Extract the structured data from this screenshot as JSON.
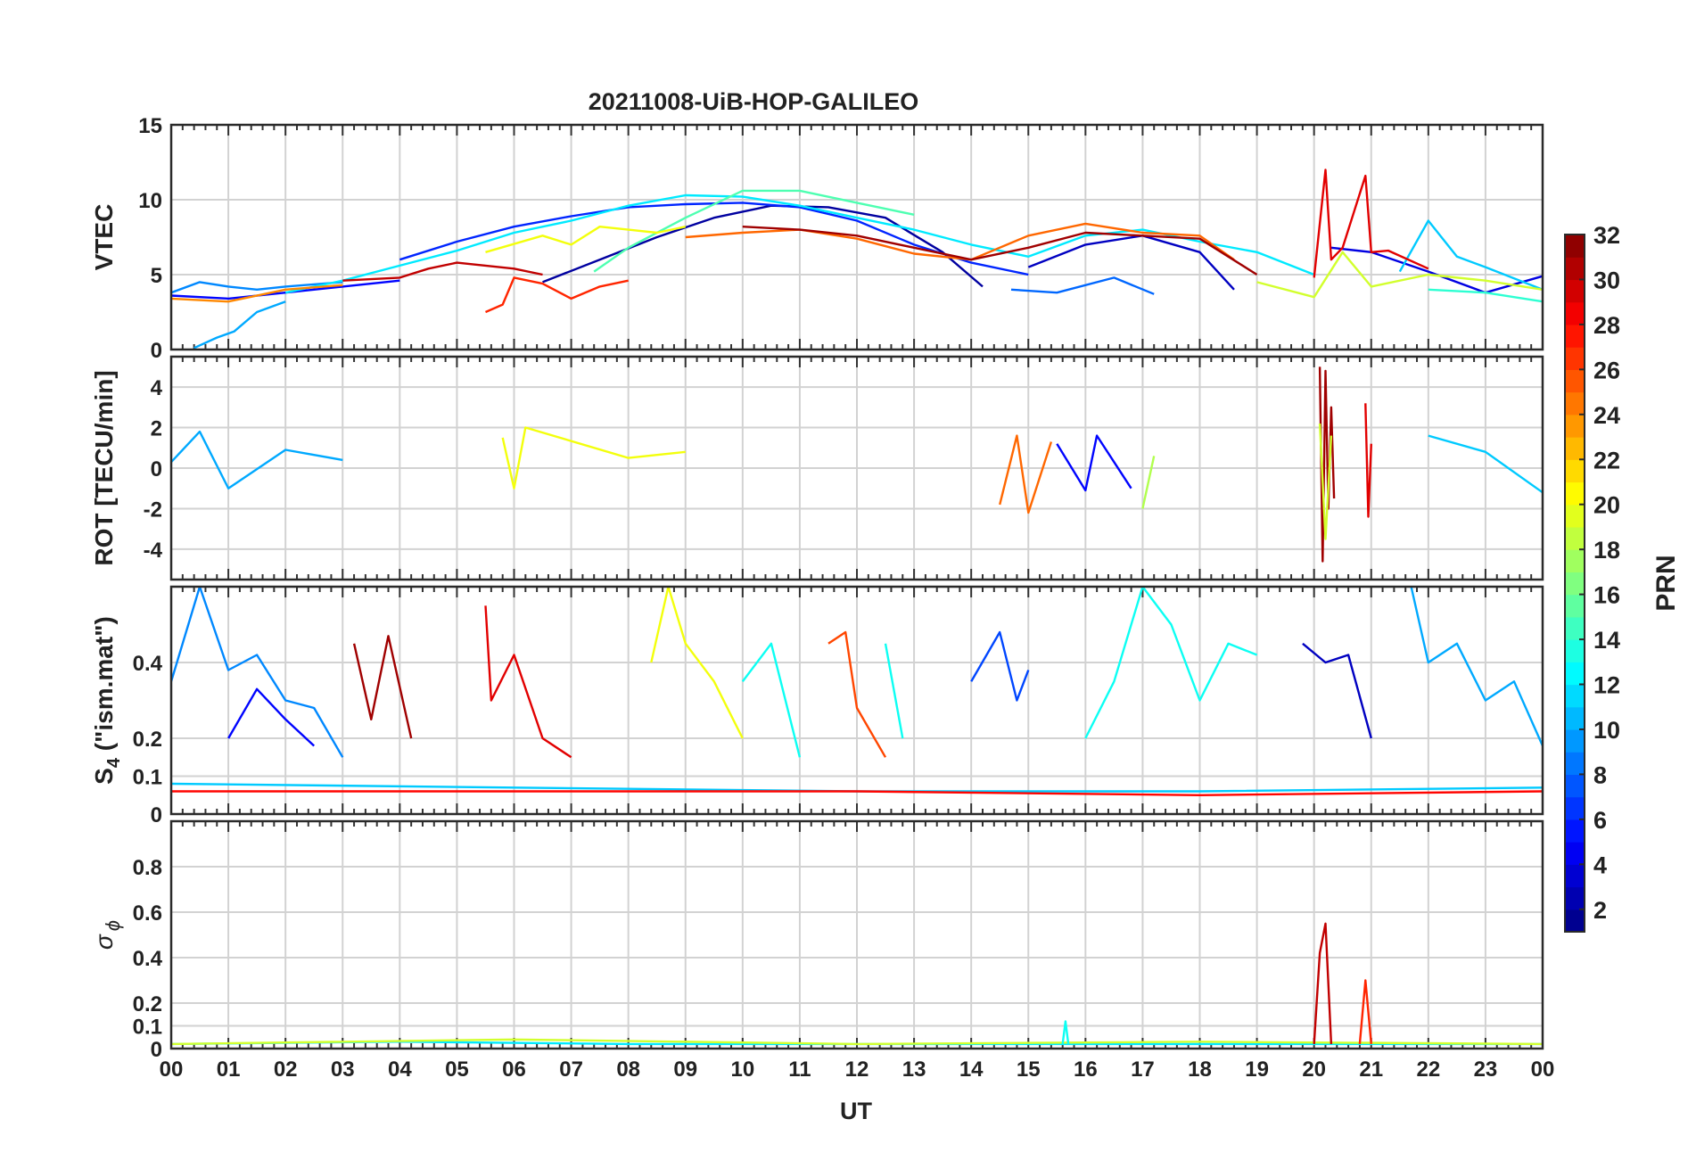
{
  "chart_data": {
    "type": "line",
    "title": "20211008-UiB-HOP-GALILEO",
    "xlabel": "UT",
    "x_ticks": [
      "00",
      "01",
      "02",
      "03",
      "04",
      "05",
      "06",
      "07",
      "08",
      "09",
      "10",
      "11",
      "12",
      "13",
      "14",
      "15",
      "16",
      "17",
      "18",
      "19",
      "20",
      "21",
      "22",
      "23",
      "00"
    ],
    "xlim": [
      0,
      24
    ],
    "colorbar": {
      "label": "PRN",
      "range": [
        1,
        32
      ],
      "ticks": [
        2,
        4,
        6,
        8,
        10,
        12,
        14,
        16,
        18,
        20,
        22,
        24,
        26,
        28,
        30,
        32
      ],
      "colormap": "jet"
    },
    "panels": [
      {
        "id": "vtec",
        "ylabel": "VTEC",
        "ylim": [
          0,
          15
        ],
        "yticks": [
          0,
          5,
          10,
          15
        ],
        "series": [
          {
            "prn": 2,
            "x": [
              6.5,
              7.5,
              8.5,
              9.5,
              10.5,
              11.5,
              12.5,
              13.5,
              14.2
            ],
            "y": [
              4.5,
              6.0,
              7.5,
              8.8,
              9.6,
              9.5,
              8.8,
              6.5,
              4.2
            ]
          },
          {
            "prn": 3,
            "x": [
              15.0,
              16.0,
              17.0,
              18.0,
              18.6
            ],
            "y": [
              5.5,
              7.0,
              7.6,
              6.5,
              4.0
            ]
          },
          {
            "prn": 4,
            "x": [
              20.3,
              21.0,
              22.0,
              23.0,
              24.0
            ],
            "y": [
              6.8,
              6.5,
              5.2,
              3.8,
              4.9
            ]
          },
          {
            "prn": 5,
            "x": [
              0.0,
              1.0,
              2.0,
              3.0,
              4.0
            ],
            "y": [
              3.6,
              3.4,
              3.8,
              4.2,
              4.6
            ]
          },
          {
            "prn": 6,
            "x": [
              4.0,
              5.0,
              6.0,
              7.0,
              8.0,
              9.0,
              10.0,
              11.0,
              12.0,
              13.0,
              14.0,
              15.0
            ],
            "y": [
              6.0,
              7.2,
              8.2,
              8.9,
              9.5,
              9.7,
              9.8,
              9.5,
              8.6,
              7.0,
              5.8,
              5.0
            ]
          },
          {
            "prn": 8,
            "x": [
              14.7,
              15.5,
              16.5,
              17.2
            ],
            "y": [
              4.0,
              3.8,
              4.8,
              3.7
            ]
          },
          {
            "prn": 9,
            "x": [
              0.0,
              0.5,
              1.0,
              1.5,
              2.0,
              3.0
            ],
            "y": [
              3.8,
              4.5,
              4.2,
              4.0,
              4.2,
              4.5
            ]
          },
          {
            "prn": 10,
            "x": [
              0.4,
              0.8,
              1.1,
              1.5,
              2.0
            ],
            "y": [
              0.1,
              0.8,
              1.2,
              2.5,
              3.2
            ]
          },
          {
            "prn": 11,
            "x": [
              21.5,
              22.0,
              22.5,
              23.0,
              24.0
            ],
            "y": [
              5.2,
              8.6,
              6.2,
              5.5,
              4.0
            ]
          },
          {
            "prn": 12,
            "x": [
              2.0,
              3.0,
              4.0,
              5.0,
              6.0,
              7.0,
              8.0,
              9.0,
              10.0,
              11.0,
              12.0,
              13.0,
              14.0,
              15.0,
              16.0,
              17.0,
              18.0,
              19.0,
              20.0
            ],
            "y": [
              3.8,
              4.6,
              5.6,
              6.6,
              7.8,
              8.6,
              9.6,
              10.3,
              10.2,
              9.6,
              8.8,
              8.0,
              7.0,
              6.2,
              7.6,
              8.0,
              7.2,
              6.5,
              5.0
            ]
          },
          {
            "prn": 14,
            "x": [
              22.0,
              23.0,
              24.0
            ],
            "y": [
              4.0,
              3.8,
              3.2
            ]
          },
          {
            "prn": 15,
            "x": [
              7.4,
              8.0,
              9.0,
              10.0,
              11.0,
              12.0,
              13.0
            ],
            "y": [
              5.2,
              6.8,
              8.8,
              10.6,
              10.6,
              9.8,
              9.0
            ]
          },
          {
            "prn": 19,
            "x": [
              19.0,
              20.0,
              20.5,
              21.0,
              22.0,
              23.0,
              24.0
            ],
            "y": [
              4.5,
              3.5,
              6.5,
              4.2,
              5.0,
              4.6,
              4.0
            ]
          },
          {
            "prn": 20,
            "x": [
              5.5,
              6.5,
              7.0,
              7.5,
              8.0,
              8.5,
              9.0
            ],
            "y": [
              6.5,
              7.6,
              7.0,
              8.2,
              8.0,
              7.8,
              8.2
            ]
          },
          {
            "prn": 24,
            "x": [
              0.0,
              1.0,
              2.0,
              3.0
            ],
            "y": [
              3.4,
              3.2,
              4.0,
              4.3
            ]
          },
          {
            "prn": 25,
            "x": [
              9.0,
              10.0,
              11.0,
              12.0,
              13.0,
              14.0,
              15.0,
              16.0,
              17.0,
              18.0,
              18.6
            ],
            "y": [
              7.5,
              7.8,
              8.0,
              7.4,
              6.4,
              6.0,
              7.6,
              8.4,
              7.8,
              7.6,
              6.0
            ]
          },
          {
            "prn": 27,
            "x": [
              5.5,
              5.8,
              6.0,
              6.5,
              7.0,
              7.5,
              8.0
            ],
            "y": [
              2.5,
              3.0,
              4.8,
              4.4,
              3.4,
              4.2,
              4.6
            ]
          },
          {
            "prn": 30,
            "x": [
              3.0,
              4.0,
              4.5,
              5.0,
              6.0,
              6.5
            ],
            "y": [
              4.6,
              4.8,
              5.4,
              5.8,
              5.4,
              5.0
            ]
          },
          {
            "prn": 31,
            "x": [
              10.0,
              11.0,
              12.0,
              13.0,
              14.0,
              15.0,
              16.0,
              17.0,
              18.0,
              19.0
            ],
            "y": [
              8.2,
              8.0,
              7.6,
              6.8,
              6.0,
              6.8,
              7.8,
              7.6,
              7.4,
              5.0
            ]
          },
          {
            "prn": 29,
            "x": [
              20.0,
              20.2,
              20.3,
              20.5,
              20.9,
              21.0,
              21.3,
              22.0
            ],
            "y": [
              4.8,
              12.0,
              6.0,
              6.8,
              11.6,
              6.5,
              6.6,
              5.4
            ]
          }
        ]
      },
      {
        "id": "rot",
        "ylabel": "ROT [TECU/min]",
        "ylim": [
          -5.5,
          5.5
        ],
        "yticks": [
          -4,
          -2,
          0,
          2,
          4
        ],
        "series": [
          {
            "prn": 10,
            "x": [
              0.0,
              0.5,
              1.0,
              2.0,
              3.0
            ],
            "y": [
              0.3,
              1.8,
              -1.0,
              0.9,
              0.4
            ]
          },
          {
            "prn": 20,
            "x": [
              5.8,
              6.0,
              6.2,
              8.0,
              9.0
            ],
            "y": [
              1.5,
              -1.0,
              2.0,
              0.5,
              0.8
            ]
          },
          {
            "prn": 25,
            "x": [
              14.5,
              14.8,
              15.0,
              15.4
            ],
            "y": [
              -1.8,
              1.6,
              -2.2,
              1.3
            ]
          },
          {
            "prn": 5,
            "x": [
              15.5,
              16.0,
              16.2,
              16.8
            ],
            "y": [
              1.2,
              -1.1,
              1.6,
              -1.0
            ]
          },
          {
            "prn": 18,
            "x": [
              17.0,
              17.2
            ],
            "y": [
              -2.0,
              0.6
            ]
          },
          {
            "prn": 31,
            "x": [
              20.1,
              20.15,
              20.2,
              20.25,
              20.3,
              20.35
            ],
            "y": [
              5.0,
              -4.6,
              4.8,
              -2.0,
              3.0,
              -1.5
            ]
          },
          {
            "prn": 19,
            "x": [
              20.1,
              20.2,
              20.3
            ],
            "y": [
              2.2,
              -3.5,
              1.6
            ]
          },
          {
            "prn": 29,
            "x": [
              20.9,
              20.95,
              21.0
            ],
            "y": [
              3.2,
              -2.4,
              1.2
            ]
          },
          {
            "prn": 11,
            "x": [
              22.0,
              23.0,
              24.0
            ],
            "y": [
              1.6,
              0.8,
              -1.2
            ]
          }
        ]
      },
      {
        "id": "s4",
        "ylabel": "S4 (\"ism.mat\")",
        "ylabel_main": "S",
        "ylabel_sub": "4",
        "ylabel_rest": " (\"ism.mat\")",
        "ylim": [
          0,
          0.6
        ],
        "yticks": [
          0,
          0.1,
          0.2,
          0.4
        ],
        "series": [
          {
            "prn": 9,
            "x": [
              0.0,
              0.5,
              1.0,
              1.5,
              2.0,
              2.5,
              3.0
            ],
            "y": [
              0.35,
              0.6,
              0.38,
              0.42,
              0.3,
              0.28,
              0.15
            ]
          },
          {
            "prn": 5,
            "x": [
              1.0,
              1.5,
              2.0,
              2.5
            ],
            "y": [
              0.2,
              0.33,
              0.25,
              0.18
            ]
          },
          {
            "prn": 31,
            "x": [
              3.2,
              3.5,
              3.8,
              4.2
            ],
            "y": [
              0.45,
              0.25,
              0.47,
              0.2
            ]
          },
          {
            "prn": 29,
            "x": [
              5.5,
              5.6,
              6.0,
              6.5,
              7.0
            ],
            "y": [
              0.55,
              0.3,
              0.42,
              0.2,
              0.15
            ]
          },
          {
            "prn": 20,
            "x": [
              8.4,
              8.7,
              9.0,
              9.5,
              10.0
            ],
            "y": [
              0.4,
              0.6,
              0.45,
              0.35,
              0.2
            ]
          },
          {
            "prn": 13,
            "x": [
              10.0,
              10.5,
              11.0
            ],
            "y": [
              0.35,
              0.45,
              0.15
            ]
          },
          {
            "prn": 26,
            "x": [
              11.5,
              11.8,
              12.0,
              12.5
            ],
            "y": [
              0.45,
              0.48,
              0.28,
              0.15
            ]
          },
          {
            "prn": 13,
            "x": [
              12.5,
              12.8
            ],
            "y": [
              0.45,
              0.2
            ]
          },
          {
            "prn": 7,
            "x": [
              14.0,
              14.5,
              14.8,
              15.0
            ],
            "y": [
              0.35,
              0.48,
              0.3,
              0.38
            ]
          },
          {
            "prn": 13,
            "x": [
              16.0,
              16.5,
              17.0,
              17.5,
              18.0,
              18.5,
              19.0
            ],
            "y": [
              0.2,
              0.35,
              0.6,
              0.5,
              0.3,
              0.45,
              0.42
            ]
          },
          {
            "prn": 3,
            "x": [
              19.8,
              20.2,
              20.6,
              21.0
            ],
            "y": [
              0.45,
              0.4,
              0.42,
              0.2
            ]
          },
          {
            "prn": 10,
            "x": [
              21.7,
              22.0,
              22.5,
              23.0,
              23.5,
              24.0
            ],
            "y": [
              0.6,
              0.4,
              0.45,
              0.3,
              0.35,
              0.18
            ]
          },
          {
            "prn": 11,
            "x": [
              0.0,
              6.0,
              12.0,
              18.0,
              24.0
            ],
            "y": [
              0.08,
              0.07,
              0.06,
              0.06,
              0.07
            ]
          },
          {
            "prn": 28,
            "x": [
              0.0,
              6.0,
              12.0,
              18.0,
              24.0
            ],
            "y": [
              0.06,
              0.06,
              0.06,
              0.05,
              0.06
            ]
          }
        ]
      },
      {
        "id": "sigphi",
        "ylabel": "σϕ",
        "ylim": [
          0,
          1
        ],
        "yticks": [
          0,
          0.1,
          0.2,
          0.4,
          0.6,
          0.8
        ],
        "series": [
          {
            "prn": 12,
            "x": [
              0.0,
              4.0,
              8.0,
              12.0,
              16.0,
              20.0,
              24.0
            ],
            "y": [
              0.02,
              0.03,
              0.02,
              0.02,
              0.02,
              0.02,
              0.02
            ]
          },
          {
            "prn": 19,
            "x": [
              0.0,
              6.0,
              12.0,
              18.0,
              24.0
            ],
            "y": [
              0.02,
              0.04,
              0.02,
              0.03,
              0.02
            ]
          },
          {
            "prn": 13,
            "x": [
              15.6,
              15.65,
              15.7
            ],
            "y": [
              0.02,
              0.12,
              0.02
            ]
          },
          {
            "prn": 30,
            "x": [
              20.0,
              20.1,
              20.2,
              20.3
            ],
            "y": [
              0.02,
              0.42,
              0.55,
              0.02
            ]
          },
          {
            "prn": 27,
            "x": [
              20.8,
              20.9,
              21.0
            ],
            "y": [
              0.02,
              0.3,
              0.02
            ]
          }
        ]
      }
    ]
  }
}
